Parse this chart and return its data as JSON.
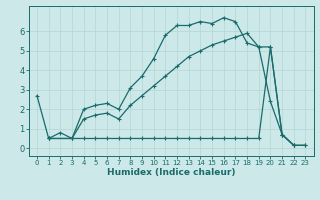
{
  "xlabel": "Humidex (Indice chaleur)",
  "background_color": "#cce8e8",
  "grid_color": "#b8d8d8",
  "line_color": "#1a6b6b",
  "x_ticks": [
    0,
    1,
    2,
    3,
    4,
    5,
    6,
    7,
    8,
    9,
    10,
    11,
    12,
    13,
    14,
    15,
    16,
    17,
    18,
    19,
    20,
    21,
    22,
    23
  ],
  "y_ticks": [
    0,
    1,
    2,
    3,
    4,
    5,
    6
  ],
  "ylim": [
    -0.4,
    7.3
  ],
  "xlim": [
    -0.7,
    23.7
  ],
  "line1_x": [
    0,
    1,
    2,
    3,
    4,
    5,
    6,
    7,
    8,
    9,
    10,
    11,
    12,
    13,
    14,
    15,
    16,
    17,
    18,
    19,
    20,
    21,
    22
  ],
  "line1_y": [
    2.7,
    0.5,
    0.8,
    0.5,
    2.0,
    2.2,
    2.3,
    2.0,
    3.1,
    3.7,
    4.6,
    5.8,
    6.3,
    6.3,
    6.5,
    6.4,
    6.7,
    6.5,
    5.4,
    5.2,
    2.4,
    0.7,
    0.15
  ],
  "line2_x": [
    1,
    3,
    4,
    5,
    6,
    7,
    8,
    9,
    10,
    11,
    12,
    13,
    14,
    15,
    16,
    17,
    18,
    19,
    20,
    21,
    22,
    23
  ],
  "line2_y": [
    0.5,
    0.5,
    0.5,
    0.5,
    0.5,
    0.5,
    0.5,
    0.5,
    0.5,
    0.5,
    0.5,
    0.5,
    0.5,
    0.5,
    0.5,
    0.5,
    0.5,
    0.5,
    5.2,
    0.7,
    0.15,
    0.15
  ],
  "line3_x": [
    1,
    3,
    4,
    5,
    6,
    7,
    8,
    9,
    10,
    11,
    12,
    13,
    14,
    15,
    16,
    17,
    18,
    19,
    20,
    21,
    22,
    23
  ],
  "line3_y": [
    0.5,
    0.5,
    1.5,
    1.7,
    1.8,
    1.5,
    2.2,
    2.7,
    3.2,
    3.7,
    4.2,
    4.7,
    5.0,
    5.3,
    5.5,
    5.7,
    5.9,
    5.2,
    5.2,
    0.7,
    0.15,
    0.15
  ],
  "tick_fontsize": 5,
  "xlabel_fontsize": 6.5,
  "marker_size": 3,
  "linewidth": 0.9
}
